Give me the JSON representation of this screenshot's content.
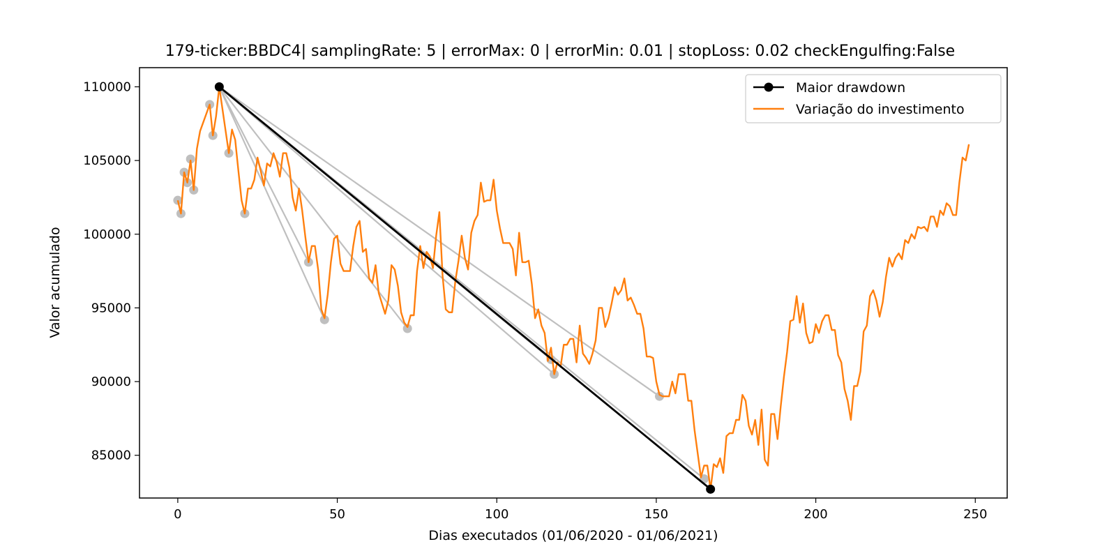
{
  "chart_data": {
    "type": "line",
    "title": "179-ticker:BBDC4| samplingRate: 5 | errorMax: 0 | errorMin: 0.01 | stopLoss: 0.02 checkEngulfing:False",
    "xlabel": "Dias executados (01/06/2020 - 01/06/2021)",
    "ylabel": "Valor acumulado",
    "xlim": [
      -12,
      260
    ],
    "ylim": [
      82100,
      111300
    ],
    "x_ticks": [
      0,
      50,
      100,
      150,
      200,
      250
    ],
    "y_ticks": [
      85000,
      90000,
      95000,
      100000,
      105000,
      110000
    ],
    "legend": {
      "position": "top-right",
      "entries": [
        {
          "label": "Maior drawdown",
          "color": "#000000",
          "marker": "circle"
        },
        {
          "label": "Variação do investimento",
          "color": "#ff7f0e",
          "marker": "none"
        }
      ]
    },
    "colors": {
      "investment": "#ff7f0e",
      "drawdown": "#000000",
      "candidates": "#bfbfbf"
    },
    "series": [
      {
        "name": "Variação do investimento",
        "color": "#ff7f0e",
        "points": [
          [
            0,
            102300
          ],
          [
            1,
            101400
          ],
          [
            2,
            104200
          ],
          [
            3,
            103500
          ],
          [
            4,
            105000
          ],
          [
            5,
            103000
          ],
          [
            6,
            105800
          ],
          [
            7,
            107000
          ],
          [
            8,
            107600
          ],
          [
            9,
            108200
          ],
          [
            10,
            108800
          ],
          [
            11,
            106700
          ],
          [
            12,
            108000
          ],
          [
            13,
            110000
          ],
          [
            14,
            108500
          ],
          [
            15,
            107000
          ],
          [
            16,
            105500
          ],
          [
            17,
            107100
          ],
          [
            18,
            106400
          ],
          [
            19,
            104300
          ],
          [
            20,
            102300
          ],
          [
            21,
            101400
          ],
          [
            22,
            103100
          ],
          [
            23,
            103100
          ],
          [
            24,
            103700
          ],
          [
            25,
            105200
          ],
          [
            26,
            104300
          ],
          [
            27,
            103300
          ],
          [
            28,
            104800
          ],
          [
            29,
            104600
          ],
          [
            30,
            105500
          ],
          [
            31,
            104900
          ],
          [
            32,
            103900
          ],
          [
            33,
            105500
          ],
          [
            34,
            105500
          ],
          [
            35,
            104500
          ],
          [
            36,
            102500
          ],
          [
            37,
            101600
          ],
          [
            38,
            103100
          ],
          [
            39,
            101600
          ],
          [
            40,
            99800
          ],
          [
            41,
            98100
          ],
          [
            42,
            99200
          ],
          [
            43,
            99200
          ],
          [
            44,
            97600
          ],
          [
            45,
            94900
          ],
          [
            46,
            94300
          ],
          [
            47,
            95900
          ],
          [
            48,
            98100
          ],
          [
            49,
            99700
          ],
          [
            50,
            99900
          ],
          [
            51,
            98000
          ],
          [
            52,
            97500
          ],
          [
            53,
            97500
          ],
          [
            54,
            97500
          ],
          [
            55,
            99200
          ],
          [
            56,
            100500
          ],
          [
            57,
            100900
          ],
          [
            58,
            98800
          ],
          [
            59,
            99000
          ],
          [
            60,
            97000
          ],
          [
            61,
            96700
          ],
          [
            62,
            97900
          ],
          [
            63,
            96000
          ],
          [
            64,
            95300
          ],
          [
            65,
            94600
          ],
          [
            66,
            95500
          ],
          [
            67,
            97900
          ],
          [
            68,
            97600
          ],
          [
            69,
            96500
          ],
          [
            70,
            94700
          ],
          [
            71,
            94000
          ],
          [
            72,
            93700
          ],
          [
            73,
            94500
          ],
          [
            74,
            94500
          ],
          [
            75,
            97500
          ],
          [
            76,
            99200
          ],
          [
            77,
            97700
          ],
          [
            78,
            98800
          ],
          [
            79,
            98500
          ],
          [
            80,
            97700
          ],
          [
            81,
            99900
          ],
          [
            82,
            101500
          ],
          [
            83,
            97200
          ],
          [
            84,
            94900
          ],
          [
            85,
            94700
          ],
          [
            86,
            94700
          ],
          [
            87,
            96800
          ],
          [
            88,
            98200
          ],
          [
            89,
            99900
          ],
          [
            90,
            98400
          ],
          [
            91,
            97600
          ],
          [
            92,
            100100
          ],
          [
            93,
            100900
          ],
          [
            94,
            101300
          ],
          [
            95,
            103500
          ],
          [
            96,
            102200
          ],
          [
            97,
            102300
          ],
          [
            98,
            102300
          ],
          [
            99,
            103700
          ],
          [
            100,
            101600
          ],
          [
            101,
            100400
          ],
          [
            102,
            99400
          ],
          [
            103,
            99400
          ],
          [
            104,
            99400
          ],
          [
            105,
            99000
          ],
          [
            106,
            97200
          ],
          [
            107,
            100100
          ],
          [
            108,
            98100
          ],
          [
            109,
            98100
          ],
          [
            110,
            98200
          ],
          [
            111,
            96600
          ],
          [
            112,
            94300
          ],
          [
            113,
            94900
          ],
          [
            114,
            93800
          ],
          [
            115,
            93300
          ],
          [
            116,
            91400
          ],
          [
            117,
            92300
          ],
          [
            118,
            90500
          ],
          [
            119,
            91300
          ],
          [
            120,
            91000
          ],
          [
            121,
            92500
          ],
          [
            122,
            92500
          ],
          [
            123,
            92900
          ],
          [
            124,
            92900
          ],
          [
            125,
            91300
          ],
          [
            126,
            93800
          ],
          [
            127,
            91900
          ],
          [
            128,
            91600
          ],
          [
            129,
            91200
          ],
          [
            130,
            91900
          ],
          [
            131,
            92800
          ],
          [
            132,
            95000
          ],
          [
            133,
            95000
          ],
          [
            134,
            93700
          ],
          [
            135,
            94300
          ],
          [
            136,
            95300
          ],
          [
            137,
            96400
          ],
          [
            138,
            95900
          ],
          [
            139,
            96200
          ],
          [
            140,
            97000
          ],
          [
            141,
            95500
          ],
          [
            142,
            95700
          ],
          [
            143,
            95200
          ],
          [
            144,
            94600
          ],
          [
            145,
            94600
          ],
          [
            146,
            93600
          ],
          [
            147,
            91700
          ],
          [
            148,
            91700
          ],
          [
            149,
            91600
          ],
          [
            150,
            90000
          ],
          [
            151,
            89100
          ],
          [
            152,
            89000
          ],
          [
            153,
            89000
          ],
          [
            154,
            89000
          ],
          [
            155,
            90000
          ],
          [
            156,
            89200
          ],
          [
            157,
            90500
          ],
          [
            158,
            90500
          ],
          [
            159,
            90500
          ],
          [
            160,
            88700
          ],
          [
            161,
            88700
          ],
          [
            162,
            86700
          ],
          [
            163,
            85100
          ],
          [
            164,
            83500
          ],
          [
            165,
            84300
          ],
          [
            166,
            84300
          ],
          [
            167,
            82700
          ],
          [
            168,
            84400
          ],
          [
            169,
            84200
          ],
          [
            170,
            84800
          ],
          [
            171,
            83800
          ],
          [
            172,
            86300
          ],
          [
            173,
            86500
          ],
          [
            174,
            86500
          ],
          [
            175,
            87400
          ],
          [
            176,
            87400
          ],
          [
            177,
            89100
          ],
          [
            178,
            88700
          ],
          [
            179,
            87000
          ],
          [
            180,
            86400
          ],
          [
            181,
            87400
          ],
          [
            182,
            85700
          ],
          [
            183,
            88100
          ],
          [
            184,
            84700
          ],
          [
            185,
            84300
          ],
          [
            186,
            87800
          ],
          [
            187,
            87800
          ],
          [
            188,
            86100
          ],
          [
            189,
            88300
          ],
          [
            190,
            90300
          ],
          [
            191,
            92000
          ],
          [
            192,
            94100
          ],
          [
            193,
            94200
          ],
          [
            194,
            95800
          ],
          [
            195,
            94000
          ],
          [
            196,
            95300
          ],
          [
            197,
            93300
          ],
          [
            198,
            92600
          ],
          [
            199,
            92700
          ],
          [
            200,
            93900
          ],
          [
            201,
            93300
          ],
          [
            202,
            94100
          ],
          [
            203,
            94500
          ],
          [
            204,
            94500
          ],
          [
            205,
            93500
          ],
          [
            206,
            93500
          ],
          [
            207,
            91800
          ],
          [
            208,
            91300
          ],
          [
            209,
            89500
          ],
          [
            210,
            88700
          ],
          [
            211,
            87400
          ],
          [
            212,
            89700
          ],
          [
            213,
            89700
          ],
          [
            214,
            90700
          ],
          [
            215,
            93400
          ],
          [
            216,
            93800
          ],
          [
            217,
            95800
          ],
          [
            218,
            96200
          ],
          [
            219,
            95500
          ],
          [
            220,
            94400
          ],
          [
            221,
            95400
          ],
          [
            222,
            97100
          ],
          [
            223,
            98400
          ],
          [
            224,
            97800
          ],
          [
            225,
            98400
          ],
          [
            226,
            98700
          ],
          [
            227,
            98300
          ],
          [
            228,
            99600
          ],
          [
            229,
            99400
          ],
          [
            230,
            100000
          ],
          [
            231,
            99700
          ],
          [
            232,
            100500
          ],
          [
            233,
            100400
          ],
          [
            234,
            100500
          ],
          [
            235,
            100200
          ],
          [
            236,
            101200
          ],
          [
            237,
            101200
          ],
          [
            238,
            100500
          ],
          [
            239,
            101600
          ],
          [
            240,
            101300
          ],
          [
            241,
            102100
          ],
          [
            242,
            101900
          ],
          [
            243,
            101300
          ],
          [
            244,
            101300
          ],
          [
            245,
            103500
          ],
          [
            246,
            105200
          ],
          [
            247,
            105000
          ],
          [
            248,
            106100
          ]
        ]
      },
      {
        "name": "Maior drawdown",
        "color": "#000000",
        "points": [
          [
            13,
            110000
          ],
          [
            167,
            82700
          ]
        ]
      }
    ],
    "candidate_drawdowns": {
      "color": "#bfbfbf",
      "segments": [
        [
          [
            13,
            110000
          ],
          [
            41,
            98100
          ]
        ],
        [
          [
            13,
            110000
          ],
          [
            46,
            94200
          ]
        ],
        [
          [
            13,
            110000
          ],
          [
            72,
            93600
          ]
        ],
        [
          [
            13,
            110000
          ],
          [
            117,
            91500
          ]
        ],
        [
          [
            13,
            110000
          ],
          [
            118,
            90500
          ]
        ],
        [
          [
            13,
            110000
          ],
          [
            151,
            89000
          ]
        ],
        [
          [
            13,
            110000
          ],
          [
            165,
            83400
          ]
        ]
      ],
      "extra_points": [
        [
          0,
          102300
        ],
        [
          1,
          101400
        ],
        [
          2,
          104200
        ],
        [
          3,
          103500
        ],
        [
          4,
          105100
        ],
        [
          5,
          103000
        ],
        [
          10,
          108800
        ],
        [
          11,
          106700
        ],
        [
          16,
          105500
        ],
        [
          21,
          101400
        ]
      ]
    }
  }
}
